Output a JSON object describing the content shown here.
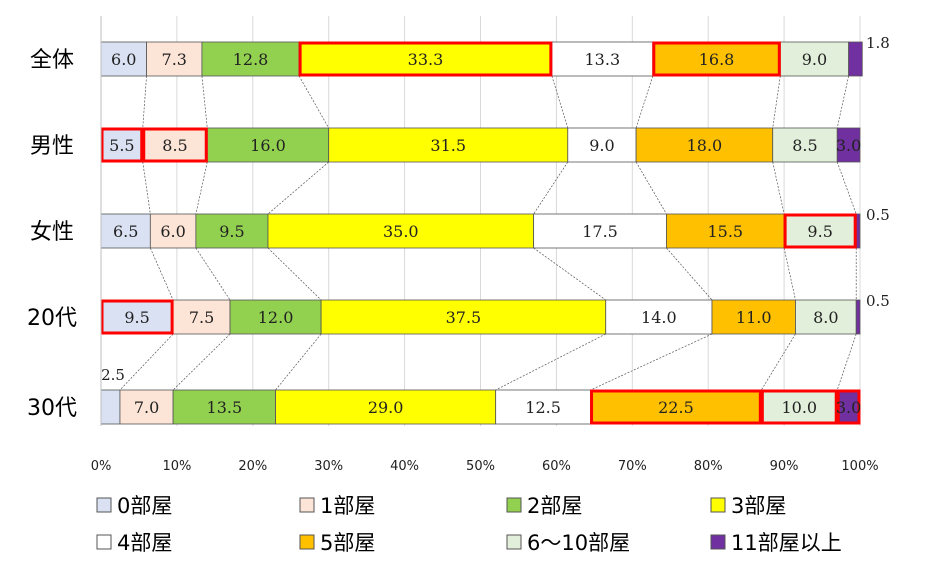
{
  "chart_data": {
    "type": "bar",
    "stacked": "percent",
    "orientation": "horizontal",
    "categories": [
      "全体",
      "男性",
      "女性",
      "20代",
      "30代"
    ],
    "xlim": [
      0,
      100
    ],
    "x_ticks": [
      "0%",
      "10%",
      "20%",
      "30%",
      "40%",
      "50%",
      "60%",
      "70%",
      "80%",
      "90%",
      "100%"
    ],
    "grid": "vertical",
    "legend_position": "bottom",
    "series": [
      {
        "name": "0部屋",
        "color": "#d9e1f2",
        "values": [
          6.0,
          5.5,
          6.5,
          9.5,
          2.5
        ],
        "labels": [
          "6.0",
          "5.5",
          "6.5",
          "9.5",
          "2.5"
        ]
      },
      {
        "name": "1部屋",
        "color": "#fce4d6",
        "values": [
          7.3,
          8.5,
          6.0,
          7.5,
          7.0
        ],
        "labels": [
          "7.3",
          "8.5",
          "6.0",
          "7.5",
          "7.0"
        ]
      },
      {
        "name": "2部屋",
        "color": "#92d050",
        "values": [
          12.8,
          16.0,
          9.5,
          12.0,
          13.5
        ],
        "labels": [
          "12.8",
          "16.0",
          "9.5",
          "12.0",
          "13.5"
        ]
      },
      {
        "name": "3部屋",
        "color": "#ffff00",
        "values": [
          33.3,
          31.5,
          35.0,
          37.5,
          29.0
        ],
        "labels": [
          "33.3",
          "31.5",
          "35.0",
          "37.5",
          "29.0"
        ]
      },
      {
        "name": "4部屋",
        "color": "#ffffff",
        "values": [
          13.3,
          9.0,
          17.5,
          14.0,
          12.5
        ],
        "labels": [
          "13.3",
          "9.0",
          "17.5",
          "14.0",
          "12.5"
        ]
      },
      {
        "name": "5部屋",
        "color": "#ffc000",
        "values": [
          16.8,
          18.0,
          15.5,
          11.0,
          22.5
        ],
        "labels": [
          "16.8",
          "18.0",
          "15.5",
          "11.0",
          "22.5"
        ]
      },
      {
        "name": "6～10部屋",
        "color": "#e2efda",
        "values": [
          9.0,
          8.5,
          9.5,
          8.0,
          10.0
        ],
        "labels": [
          "9.0",
          "8.5",
          "9.5",
          "8.0",
          "10.0"
        ]
      },
      {
        "name": "11部屋以上",
        "color": "#7030a0",
        "values": [
          1.8,
          3.0,
          0.5,
          0.5,
          3.0
        ],
        "labels": [
          "1.8",
          "3.0",
          "0.5",
          "0.5",
          "3.0"
        ]
      }
    ],
    "highlighted_segments": [
      {
        "category": "全体",
        "series": "3部屋"
      },
      {
        "category": "全体",
        "series": "5部屋"
      },
      {
        "category": "男性",
        "series": "0部屋"
      },
      {
        "category": "男性",
        "series": "1部屋"
      },
      {
        "category": "女性",
        "series": "6～10部屋"
      },
      {
        "category": "20代",
        "series": "0部屋"
      },
      {
        "category": "30代",
        "series": "5部屋"
      },
      {
        "category": "30代",
        "series": "6～10部屋"
      },
      {
        "category": "30代",
        "series": "11部屋以上"
      }
    ],
    "highlight_color": "#ff0000",
    "connector_lines": true
  }
}
